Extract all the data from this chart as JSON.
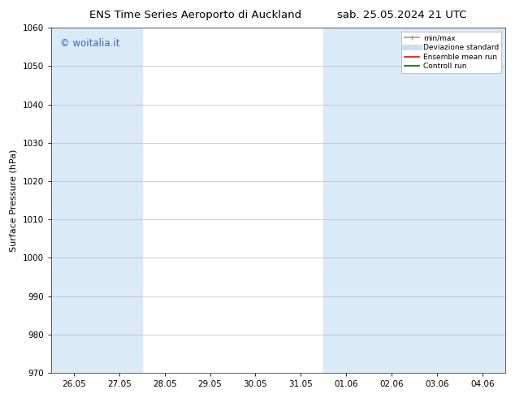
{
  "title_left": "ENS Time Series Aeroporto di Auckland",
  "title_right": "sab. 25.05.2024 21 UTC",
  "ylabel": "Surface Pressure (hPa)",
  "ylim": [
    970,
    1060
  ],
  "yticks": [
    970,
    980,
    990,
    1000,
    1010,
    1020,
    1030,
    1040,
    1050,
    1060
  ],
  "xtick_labels": [
    "26.05",
    "27.05",
    "28.05",
    "29.05",
    "30.05",
    "31.05",
    "01.06",
    "02.06",
    "03.06",
    "04.06"
  ],
  "xtick_positions": [
    0,
    1,
    2,
    3,
    4,
    5,
    6,
    7,
    8,
    9
  ],
  "xlim": [
    -0.5,
    9.5
  ],
  "shaded_bands": [
    {
      "x_start": -0.5,
      "x_end": 0.5,
      "color": "#daeaf7"
    },
    {
      "x_start": 0.5,
      "x_end": 1.5,
      "color": "#daeaf7"
    },
    {
      "x_start": 6.0,
      "x_end": 7.0,
      "color": "#daeaf7"
    },
    {
      "x_start": 8.0,
      "x_end": 9.5,
      "color": "#daeaf7"
    }
  ],
  "watermark_text": "© woitalia.it",
  "watermark_color": "#3366bb",
  "legend_items": [
    {
      "label": "min/max",
      "color": "#999999",
      "lw": 1.2,
      "ls": "-"
    },
    {
      "label": "Deviazione standard",
      "color": "#c8dff0",
      "lw": 5,
      "ls": "-"
    },
    {
      "label": "Ensemble mean run",
      "color": "#ff0000",
      "lw": 1.2,
      "ls": "-"
    },
    {
      "label": "Controll run",
      "color": "#006600",
      "lw": 1.2,
      "ls": "-"
    }
  ],
  "bg_color": "#ffffff",
  "plot_bg_color": "#ffffff",
  "grid_color": "#bbbbbb",
  "title_fontsize": 9.5,
  "tick_fontsize": 7.5,
  "ylabel_fontsize": 8,
  "watermark_fontsize": 8.5
}
